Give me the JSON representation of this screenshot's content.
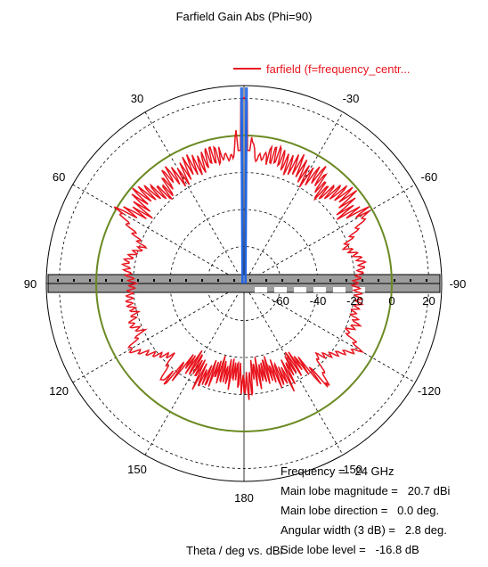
{
  "chart_data": {
    "type": "polar",
    "title": "Farfield Gain Abs (Phi=90)",
    "legend": {
      "placement": "top-right",
      "entries": [
        {
          "name": "farfield (f=frequency_centr...",
          "color": "#e8141e"
        }
      ]
    },
    "angle_unit": "deg",
    "angle_tick_labels": [
      "30",
      "-30",
      "60",
      "-60",
      "90",
      "-90",
      "120",
      "-120",
      "150",
      "-150",
      "180"
    ],
    "radial_tick_labels": [
      "-60",
      "-40",
      "-20",
      "0",
      "20"
    ],
    "radial_range": [
      -80,
      27
    ],
    "reference_circle_value": 0,
    "grid": true,
    "series": [
      {
        "name": "farfield (f=frequency_centr...",
        "color": "#e8141e",
        "theta": [
          0,
          5,
          10,
          15,
          20,
          25,
          30,
          35,
          40,
          45,
          50,
          55,
          60,
          65,
          70,
          75,
          80,
          85,
          90,
          95,
          100,
          105,
          110,
          115,
          120,
          125,
          130,
          135,
          140,
          145,
          150,
          155,
          160,
          165,
          170,
          175,
          180,
          -175,
          -170,
          -165,
          -160,
          -155,
          -150,
          -145,
          -140,
          -135,
          -130,
          -125,
          -120,
          -115,
          -110,
          -105,
          -100,
          -95,
          -90,
          -85,
          -80,
          -75,
          -70,
          -65,
          -60,
          -55,
          -50,
          -45,
          -40,
          -35,
          -30,
          -25,
          -20,
          -15,
          -10,
          -5
        ],
        "gain_dBi": [
          20.7,
          -12,
          -10,
          -8,
          -12,
          -9,
          -14,
          -8,
          -16,
          -10,
          -6,
          -14,
          -3,
          -14,
          -22,
          -18,
          -15,
          -17,
          -20,
          -18,
          -17,
          -19,
          -15,
          -19,
          -8,
          -15,
          -20,
          -25,
          -10,
          -28,
          -30,
          -24,
          -28,
          -32,
          -30,
          -33,
          -25,
          -33,
          -30,
          -32,
          -28,
          -24,
          -30,
          -28,
          -10,
          -25,
          -20,
          -15,
          -8,
          -19,
          -15,
          -19,
          -17,
          -18,
          -20,
          -17,
          -15,
          -18,
          -22,
          -14,
          -3,
          -14,
          -6,
          -10,
          -16,
          -8,
          -14,
          -9,
          -12,
          -8,
          -10,
          -12
        ]
      }
    ],
    "main_beam_color": "#1e64e6",
    "reference_circle_color": "#6b8a23",
    "annotations": [
      {
        "label": "Frequency = ",
        "value": "24 GHz"
      },
      {
        "label": "Main lobe magnitude = ",
        "value": "20.7 dBi"
      },
      {
        "label": "Main lobe direction = ",
        "value": "0.0 deg."
      },
      {
        "label": "Angular width (3 dB) = ",
        "value": "2.8 deg."
      },
      {
        "label": "Side lobe level = ",
        "value": "-16.8 dB"
      }
    ],
    "xlabel": "Theta / deg vs. dBi"
  }
}
